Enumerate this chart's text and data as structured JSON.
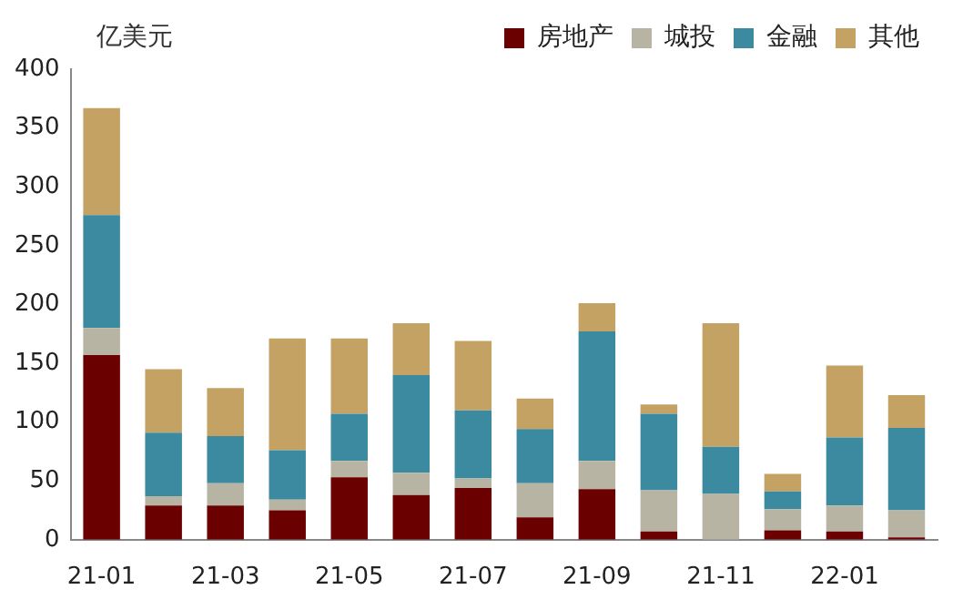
{
  "chart_data": {
    "type": "bar",
    "stacked": true,
    "categories": [
      "21-01",
      null,
      "21-03",
      null,
      "21-05",
      null,
      "21-07",
      null,
      "21-09",
      null,
      "21-11",
      null,
      "22-01",
      null
    ],
    "series": [
      {
        "name": "房地产",
        "color": "#6b0000",
        "values": [
          157,
          29,
          29,
          25,
          53,
          38,
          44,
          19,
          43,
          7,
          0,
          8,
          7,
          2
        ]
      },
      {
        "name": "城投",
        "color": "#b8b4a3",
        "values": [
          23,
          8,
          19,
          9,
          14,
          19,
          8,
          29,
          24,
          35,
          39,
          18,
          22,
          23
        ]
      },
      {
        "name": "金融",
        "color": "#3b8aa0",
        "values": [
          96,
          54,
          40,
          42,
          40,
          83,
          58,
          46,
          110,
          65,
          40,
          15,
          58,
          70
        ]
      },
      {
        "name": "其他",
        "color": "#c4a263",
        "values": [
          91,
          54,
          41,
          95,
          64,
          44,
          59,
          26,
          24,
          8,
          105,
          15,
          61,
          28
        ]
      }
    ],
    "ylim": [
      0,
      400
    ],
    "yticks": [
      0,
      50,
      100,
      150,
      200,
      250,
      300,
      350,
      400
    ],
    "grid": false,
    "legend": "top",
    "annotations": [
      "亿美元"
    ]
  }
}
